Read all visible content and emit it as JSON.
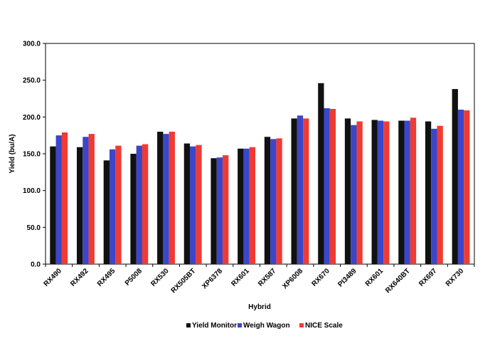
{
  "chart_data": {
    "type": "bar",
    "title": "",
    "xlabel": "Hybrid",
    "ylabel": "Yield (bu/A)",
    "ylim": [
      0,
      300
    ],
    "yticks": [
      0,
      50,
      100,
      150,
      200,
      250,
      300
    ],
    "ytick_labels": [
      "0.0",
      "50.0",
      "100.0",
      "150.0",
      "200.0",
      "250.0",
      "300.0"
    ],
    "grid": false,
    "legend_position": "bottom",
    "categories": [
      "RX490",
      "RX492",
      "RX495",
      "P5008",
      "RX530",
      "RX505BT",
      "XP6378",
      "RX601",
      "RX587",
      "XP6008",
      "RX670",
      "PI3489",
      "RX601",
      "RX640BT",
      "RX697",
      "RX730"
    ],
    "series": [
      {
        "name": "Yield Monitor",
        "color": "#111111",
        "values": [
          160,
          159,
          141,
          150,
          180,
          164,
          144,
          157,
          173,
          198,
          246,
          198,
          196,
          195,
          194,
          238
        ]
      },
      {
        "name": "Weigh Wagon",
        "color": "#3b46c8",
        "values": [
          175,
          173,
          156,
          161,
          177,
          160,
          145,
          157,
          170,
          202,
          212,
          189,
          195,
          195,
          184,
          210
        ]
      },
      {
        "name": "NICE Scale",
        "color": "#ef3b33",
        "values": [
          179,
          177,
          161,
          163,
          180,
          162,
          148,
          159,
          171,
          198,
          211,
          194,
          194,
          199,
          188,
          209
        ]
      }
    ]
  }
}
